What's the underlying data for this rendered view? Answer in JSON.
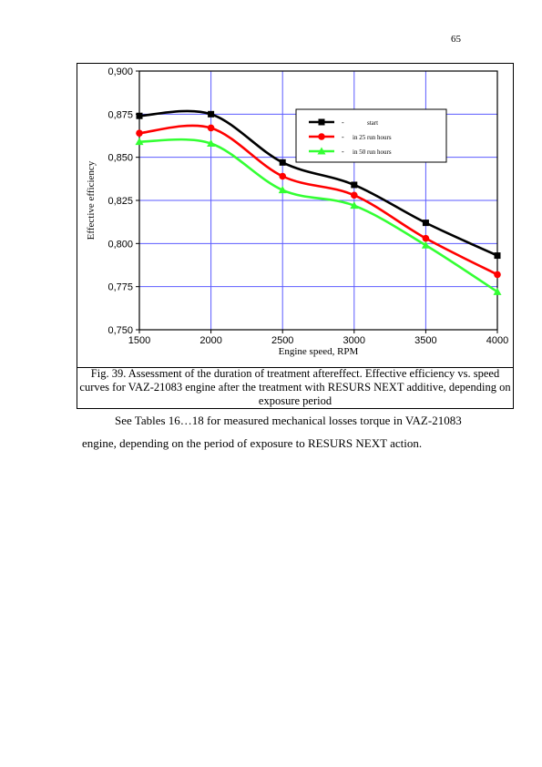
{
  "page_number": "65",
  "chart_data": {
    "type": "line",
    "title": "",
    "xlabel": "Engine speed, RPM",
    "ylabel": "Effective efficiency",
    "xlim": [
      1500,
      4000
    ],
    "ylim": [
      0.75,
      0.9
    ],
    "x_ticks": [
      1500,
      2000,
      2500,
      3000,
      3500,
      4000
    ],
    "y_ticks": [
      0.75,
      0.775,
      0.8,
      0.825,
      0.85,
      0.875,
      0.9
    ],
    "y_tick_labels": [
      "0,750",
      "0,775",
      "0,800",
      "0,825",
      "0,850",
      "0,875",
      "0,900"
    ],
    "grid": true,
    "legend_position": "top-right",
    "series": [
      {
        "name": "start",
        "color": "#000000",
        "marker": "square",
        "x": [
          1500,
          2000,
          2500,
          3000,
          3500,
          4000
        ],
        "y": [
          0.874,
          0.875,
          0.847,
          0.834,
          0.812,
          0.793
        ]
      },
      {
        "name": "in 25 run hours",
        "color": "#ff0000",
        "marker": "circle",
        "x": [
          1500,
          2000,
          2500,
          3000,
          3500,
          4000
        ],
        "y": [
          0.864,
          0.867,
          0.839,
          0.828,
          0.803,
          0.782
        ]
      },
      {
        "name": "in 50 run hours",
        "color": "#33ff33",
        "marker": "triangle",
        "x": [
          1500,
          2000,
          2500,
          3000,
          3500,
          4000
        ],
        "y": [
          0.859,
          0.858,
          0.831,
          0.822,
          0.799,
          0.772
        ]
      }
    ],
    "legend_prefix": "-"
  },
  "figure": {
    "caption": "Fig. 39. Assessment of the duration of treatment aftereffect. Effective efficiency vs. speed curves for VAZ-21083 engine after the treatment with RESURS NEXT additive, depending on exposure period"
  },
  "body": {
    "paragraph": "See Tables 16…18 for measured mechanical losses torque in VAZ-21083 engine, depending on the period of exposure to RESURS NEXT action."
  }
}
